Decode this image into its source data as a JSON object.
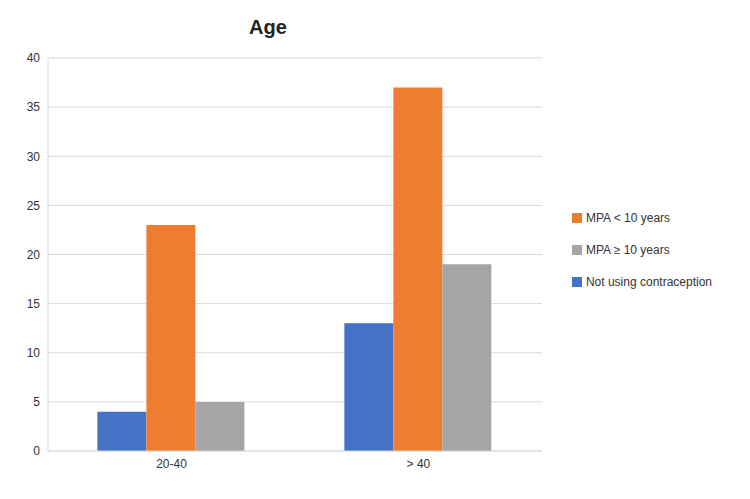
{
  "chart_data": {
    "type": "bar",
    "title": "Age",
    "categories": [
      "20-40",
      "> 40"
    ],
    "series": [
      {
        "name": "Not using contraception",
        "color": "#4472c4",
        "values": [
          4,
          13
        ]
      },
      {
        "name": "MPA < 10 years",
        "color": "#ed7d31",
        "values": [
          23,
          37
        ]
      },
      {
        "name": "MPA ≥ 10 years",
        "color": "#a5a5a5",
        "values": [
          5,
          19
        ]
      }
    ],
    "ylim": [
      0,
      40
    ],
    "yticks": [
      0,
      5,
      10,
      15,
      20,
      25,
      30,
      35,
      40
    ],
    "grid": true,
    "legend": "right"
  }
}
